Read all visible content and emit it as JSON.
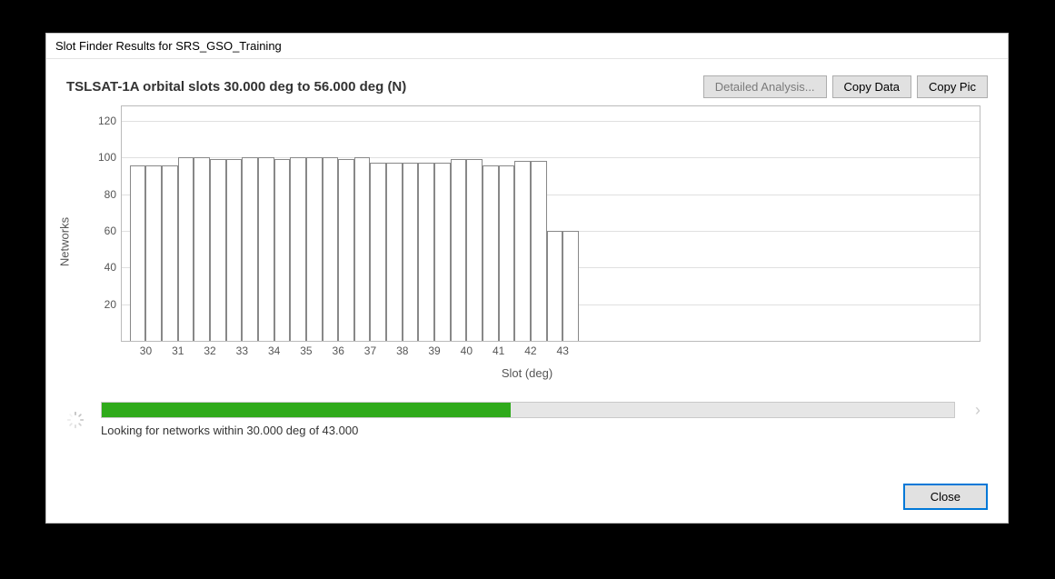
{
  "window": {
    "title": "Slot Finder Results for SRS_GSO_Training"
  },
  "header": {
    "chart_title": "TSLSAT-1A orbital slots 30.000 deg to 56.000 deg (N)",
    "buttons": {
      "detailed": "Detailed Analysis...",
      "detailed_enabled": false,
      "copy_data": "Copy Data",
      "copy_pic": "Copy Pic"
    }
  },
  "chart": {
    "type": "bar",
    "ylabel": "Networks",
    "xlabel": "Slot (deg)",
    "ylim": [
      0,
      128
    ],
    "yticks": [
      20,
      40,
      60,
      80,
      100,
      120
    ],
    "xticks": [
      30,
      31,
      32,
      33,
      34,
      35,
      36,
      37,
      38,
      39,
      40,
      41,
      42,
      43
    ],
    "x_range": [
      29.25,
      56.0
    ],
    "bar_half_width_deg": 0.25,
    "background_color": "#ffffff",
    "grid_color": "#e0e0e0",
    "axis_color": "#bbbbbb",
    "bar_fill": "#ffffff",
    "bar_border": "#888888",
    "tick_fontsize": 12,
    "label_fontsize": 13,
    "data": [
      {
        "x": 29.75,
        "y": 96
      },
      {
        "x": 30.25,
        "y": 96
      },
      {
        "x": 30.75,
        "y": 96
      },
      {
        "x": 31.25,
        "y": 100
      },
      {
        "x": 31.75,
        "y": 100
      },
      {
        "x": 32.25,
        "y": 99
      },
      {
        "x": 32.75,
        "y": 99
      },
      {
        "x": 33.25,
        "y": 100
      },
      {
        "x": 33.75,
        "y": 100
      },
      {
        "x": 34.25,
        "y": 99
      },
      {
        "x": 34.75,
        "y": 100
      },
      {
        "x": 35.25,
        "y": 100
      },
      {
        "x": 35.75,
        "y": 100
      },
      {
        "x": 36.25,
        "y": 99
      },
      {
        "x": 36.75,
        "y": 100
      },
      {
        "x": 37.25,
        "y": 97
      },
      {
        "x": 37.75,
        "y": 97
      },
      {
        "x": 38.25,
        "y": 97
      },
      {
        "x": 38.75,
        "y": 97
      },
      {
        "x": 39.25,
        "y": 97
      },
      {
        "x": 39.75,
        "y": 99
      },
      {
        "x": 40.25,
        "y": 99
      },
      {
        "x": 40.75,
        "y": 96
      },
      {
        "x": 41.25,
        "y": 96
      },
      {
        "x": 41.75,
        "y": 98
      },
      {
        "x": 42.25,
        "y": 98
      },
      {
        "x": 42.75,
        "y": 60
      },
      {
        "x": 43.25,
        "y": 60
      }
    ]
  },
  "progress": {
    "percent": 48,
    "fill_color": "#2faa1b",
    "track_color": "#e6e6e6",
    "status": "Looking for networks within 30.000 deg of 43.000"
  },
  "footer": {
    "close": "Close"
  }
}
